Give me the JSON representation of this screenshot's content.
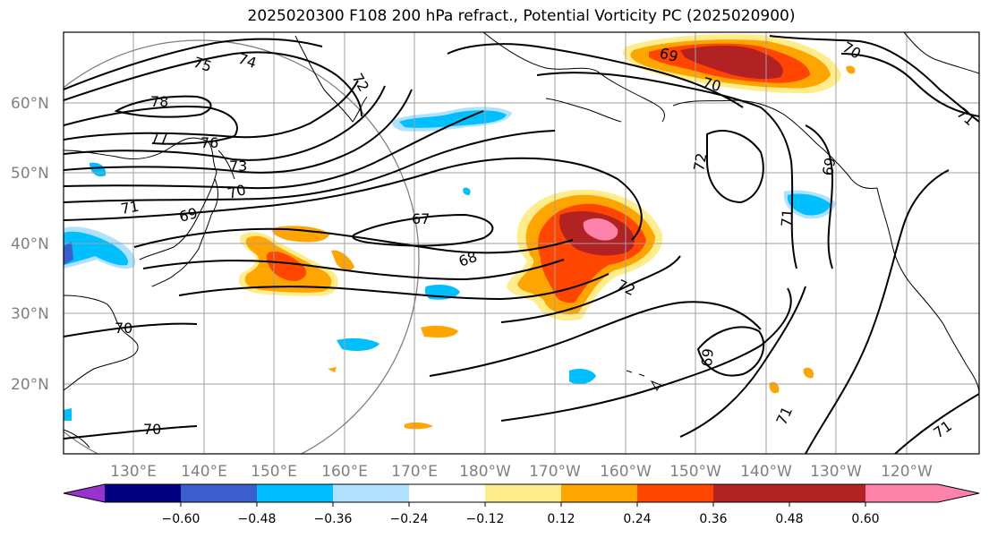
{
  "title": "2025020300 F108 200 hPa refract., Potential Vorticity PC (2025020900)",
  "lat_labels": [
    "60°N",
    "50°N",
    "40°N",
    "30°N",
    "20°N"
  ],
  "lon_labels": [
    "130°E",
    "140°E",
    "150°E",
    "160°E",
    "170°E",
    "180°W",
    "170°W",
    "160°W",
    "150°W",
    "140°W",
    "130°W",
    "120°W"
  ],
  "contour_labels": [
    "78",
    "77",
    "76",
    "75",
    "74",
    "73",
    "72",
    "71",
    "70",
    "69",
    "67",
    "68",
    "70",
    "70",
    "69",
    "70",
    "72",
    "69",
    "71",
    "72",
    "69",
    "71",
    "71",
    "71"
  ],
  "colorbar": {
    "ticks": [
      "−0.60",
      "−0.48",
      "−0.36",
      "−0.24",
      "−0.12",
      "0.12",
      "0.24",
      "0.36",
      "0.48",
      "0.60"
    ],
    "colors": [
      "#9a32cd",
      "#000080",
      "#3a5fcd",
      "#00bfff",
      "#b0e2ff",
      "#ffffff",
      "#ffec8b",
      "#ffa500",
      "#ff4500",
      "#b22222",
      "#ff82ab"
    ]
  }
}
